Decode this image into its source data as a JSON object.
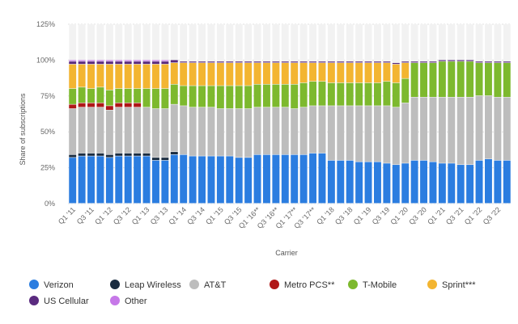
{
  "chart_data": {
    "type": "bar",
    "stacked": true,
    "xlabel": "Carrier",
    "ylabel": "Share of subscriptions",
    "ylim": [
      0,
      125
    ],
    "yticks": [
      "0%",
      "25%",
      "50%",
      "75%",
      "100%",
      "125%"
    ],
    "grid": true,
    "legend_position": "bottom",
    "categories": [
      "Q1 '11",
      "Q2 '11",
      "Q3 '11",
      "Q4 '11",
      "Q1 '12",
      "Q2 '12",
      "Q3 '12",
      "Q4 '12",
      "Q1 '13",
      "Q2 '13",
      "Q3 '13",
      "Q4 '13",
      "Q1 '14",
      "Q2 '14",
      "Q3 '14",
      "Q4 '14",
      "Q1 '15",
      "Q2 '15",
      "Q3 '15",
      "Q4 '15",
      "Q1 '16**",
      "Q2 '16**",
      "Q3 '16**",
      "Q4 '16**",
      "Q1 '17**",
      "Q2 '17**",
      "Q3 '17**",
      "Q4 '17**",
      "Q1 '18",
      "Q2 '18",
      "Q3 '18",
      "Q4 '18",
      "Q1 '19",
      "Q2 '19",
      "Q3 '19",
      "Q4 '19",
      "Q1 '20",
      "Q2 '20",
      "Q3 '20",
      "Q4 '20",
      "Q1 '21",
      "Q2 '21",
      "Q3 '21",
      "Q4 '21",
      "Q1 '22",
      "Q2 '22",
      "Q3 '22",
      "Q4 '22"
    ],
    "xtick_labels": [
      "Q1 '11",
      "",
      "Q3 '11",
      "",
      "Q1 '12",
      "",
      "Q3 '12",
      "",
      "Q1 '13",
      "",
      "Q3 '13",
      "",
      "Q1 '14",
      "",
      "Q3 '14",
      "",
      "Q1 '15",
      "",
      "Q3 '15",
      "",
      "Q1 '16**",
      "",
      "Q3 '16**",
      "",
      "Q1 '17**",
      "",
      "Q3 '17**",
      "",
      "Q1 '18",
      "",
      "Q3 '18",
      "",
      "Q1 '19",
      "",
      "Q3 '19",
      "",
      "Q1 '20",
      "",
      "Q3 '20",
      "",
      "Q1 '21",
      "",
      "Q3 '21",
      "",
      "Q1 '22",
      "",
      "Q3 '22",
      ""
    ],
    "series": [
      {
        "name": "Verizon",
        "color": "#2b7de0",
        "values": [
          32,
          33,
          33,
          33,
          32,
          33,
          33,
          33,
          33,
          30,
          30,
          34,
          34,
          33,
          33,
          33,
          33,
          33,
          32,
          32,
          34,
          34,
          34,
          34,
          34,
          34,
          35,
          35,
          30,
          30,
          30,
          29,
          29,
          29,
          28,
          27,
          28,
          30,
          30,
          29,
          28,
          28,
          27,
          27,
          30,
          31,
          30,
          30
        ]
      },
      {
        "name": "Leap Wireless",
        "color": "#1a2c40",
        "values": [
          2,
          2,
          2,
          2,
          2,
          2,
          2,
          2,
          2,
          2,
          2,
          2,
          0,
          0,
          0,
          0,
          0,
          0,
          0,
          0,
          0,
          0,
          0,
          0,
          0,
          0,
          0,
          0,
          0,
          0,
          0,
          0,
          0,
          0,
          0,
          0,
          0,
          0,
          0,
          0,
          0,
          0,
          0,
          0,
          0,
          0,
          0,
          0
        ]
      },
      {
        "name": "AT&T",
        "color": "#bdbdbd",
        "values": [
          32,
          32,
          32,
          32,
          31,
          32,
          32,
          32,
          32,
          34,
          34,
          33,
          34,
          34,
          34,
          34,
          33,
          33,
          34,
          34,
          33,
          33,
          33,
          33,
          32,
          33,
          33,
          33,
          38,
          38,
          38,
          39,
          39,
          39,
          40,
          40,
          42,
          44,
          44,
          45,
          46,
          46,
          47,
          47,
          45,
          44,
          44,
          44
        ]
      },
      {
        "name": "Metro PCS**",
        "color": "#b01818",
        "values": [
          3,
          3,
          3,
          3,
          3,
          3,
          3,
          3,
          0,
          0,
          0,
          0,
          0,
          0,
          0,
          0,
          0,
          0,
          0,
          0,
          0,
          0,
          0,
          0,
          0,
          0,
          0,
          0,
          0,
          0,
          0,
          0,
          0,
          0,
          0,
          0,
          0,
          0,
          0,
          0,
          0,
          0,
          0,
          0,
          0,
          0,
          0,
          0
        ]
      },
      {
        "name": "T-Mobile",
        "color": "#7db92e",
        "values": [
          11,
          11,
          10,
          11,
          11,
          10,
          10,
          10,
          13,
          14,
          14,
          14,
          14,
          15,
          15,
          15,
          16,
          16,
          16,
          16,
          16,
          16,
          16,
          16,
          17,
          17,
          17,
          17,
          16,
          16,
          16,
          16,
          16,
          16,
          17,
          17,
          17,
          24,
          24,
          24,
          25,
          25,
          25,
          25,
          23,
          23,
          24,
          24
        ]
      },
      {
        "name": "Sprint***",
        "color": "#f3b531",
        "values": [
          17,
          16,
          17,
          16,
          18,
          17,
          17,
          17,
          17,
          17,
          17,
          15,
          16,
          16,
          16,
          16,
          16,
          16,
          16,
          16,
          15,
          15,
          15,
          15,
          15,
          14,
          13,
          13,
          14,
          14,
          14,
          14,
          14,
          14,
          13,
          13,
          11,
          0,
          0,
          0,
          0,
          0,
          0,
          0,
          0,
          0,
          0,
          0
        ]
      },
      {
        "name": "US Cellular",
        "color": "#5a2a7f",
        "values": [
          2,
          2,
          2,
          2,
          2,
          2,
          2,
          2,
          2,
          2,
          2,
          2,
          1,
          1,
          1,
          1,
          1,
          1,
          1,
          1,
          1,
          1,
          1,
          1,
          1,
          1,
          1,
          1,
          1,
          1,
          1,
          1,
          1,
          1,
          1,
          1,
          1,
          1,
          1,
          1,
          1,
          1,
          1,
          1,
          1,
          1,
          1,
          1
        ]
      },
      {
        "name": "Other",
        "color": "#c678e8",
        "values": [
          1,
          1,
          1,
          1,
          1,
          1,
          1,
          1,
          1,
          1,
          1,
          0,
          0,
          0,
          0,
          0,
          0,
          0,
          0,
          0,
          0,
          0,
          0,
          0,
          0,
          0,
          0,
          0,
          0,
          0,
          0,
          0,
          0,
          0,
          0,
          0,
          0,
          0,
          0,
          0,
          0,
          0,
          0,
          0,
          0,
          0,
          0,
          0
        ]
      }
    ]
  },
  "legend_items": [
    {
      "label": "Verizon",
      "color": "#2b7de0"
    },
    {
      "label": "Leap Wireless",
      "color": "#1a2c40"
    },
    {
      "label": "AT&T",
      "color": "#bdbdbd"
    },
    {
      "label": "Metro PCS**",
      "color": "#b01818"
    },
    {
      "label": "T-Mobile",
      "color": "#7db92e"
    },
    {
      "label": "Sprint***",
      "color": "#f3b531"
    },
    {
      "label": "US Cellular",
      "color": "#5a2a7f"
    },
    {
      "label": "Other",
      "color": "#c678e8"
    }
  ]
}
